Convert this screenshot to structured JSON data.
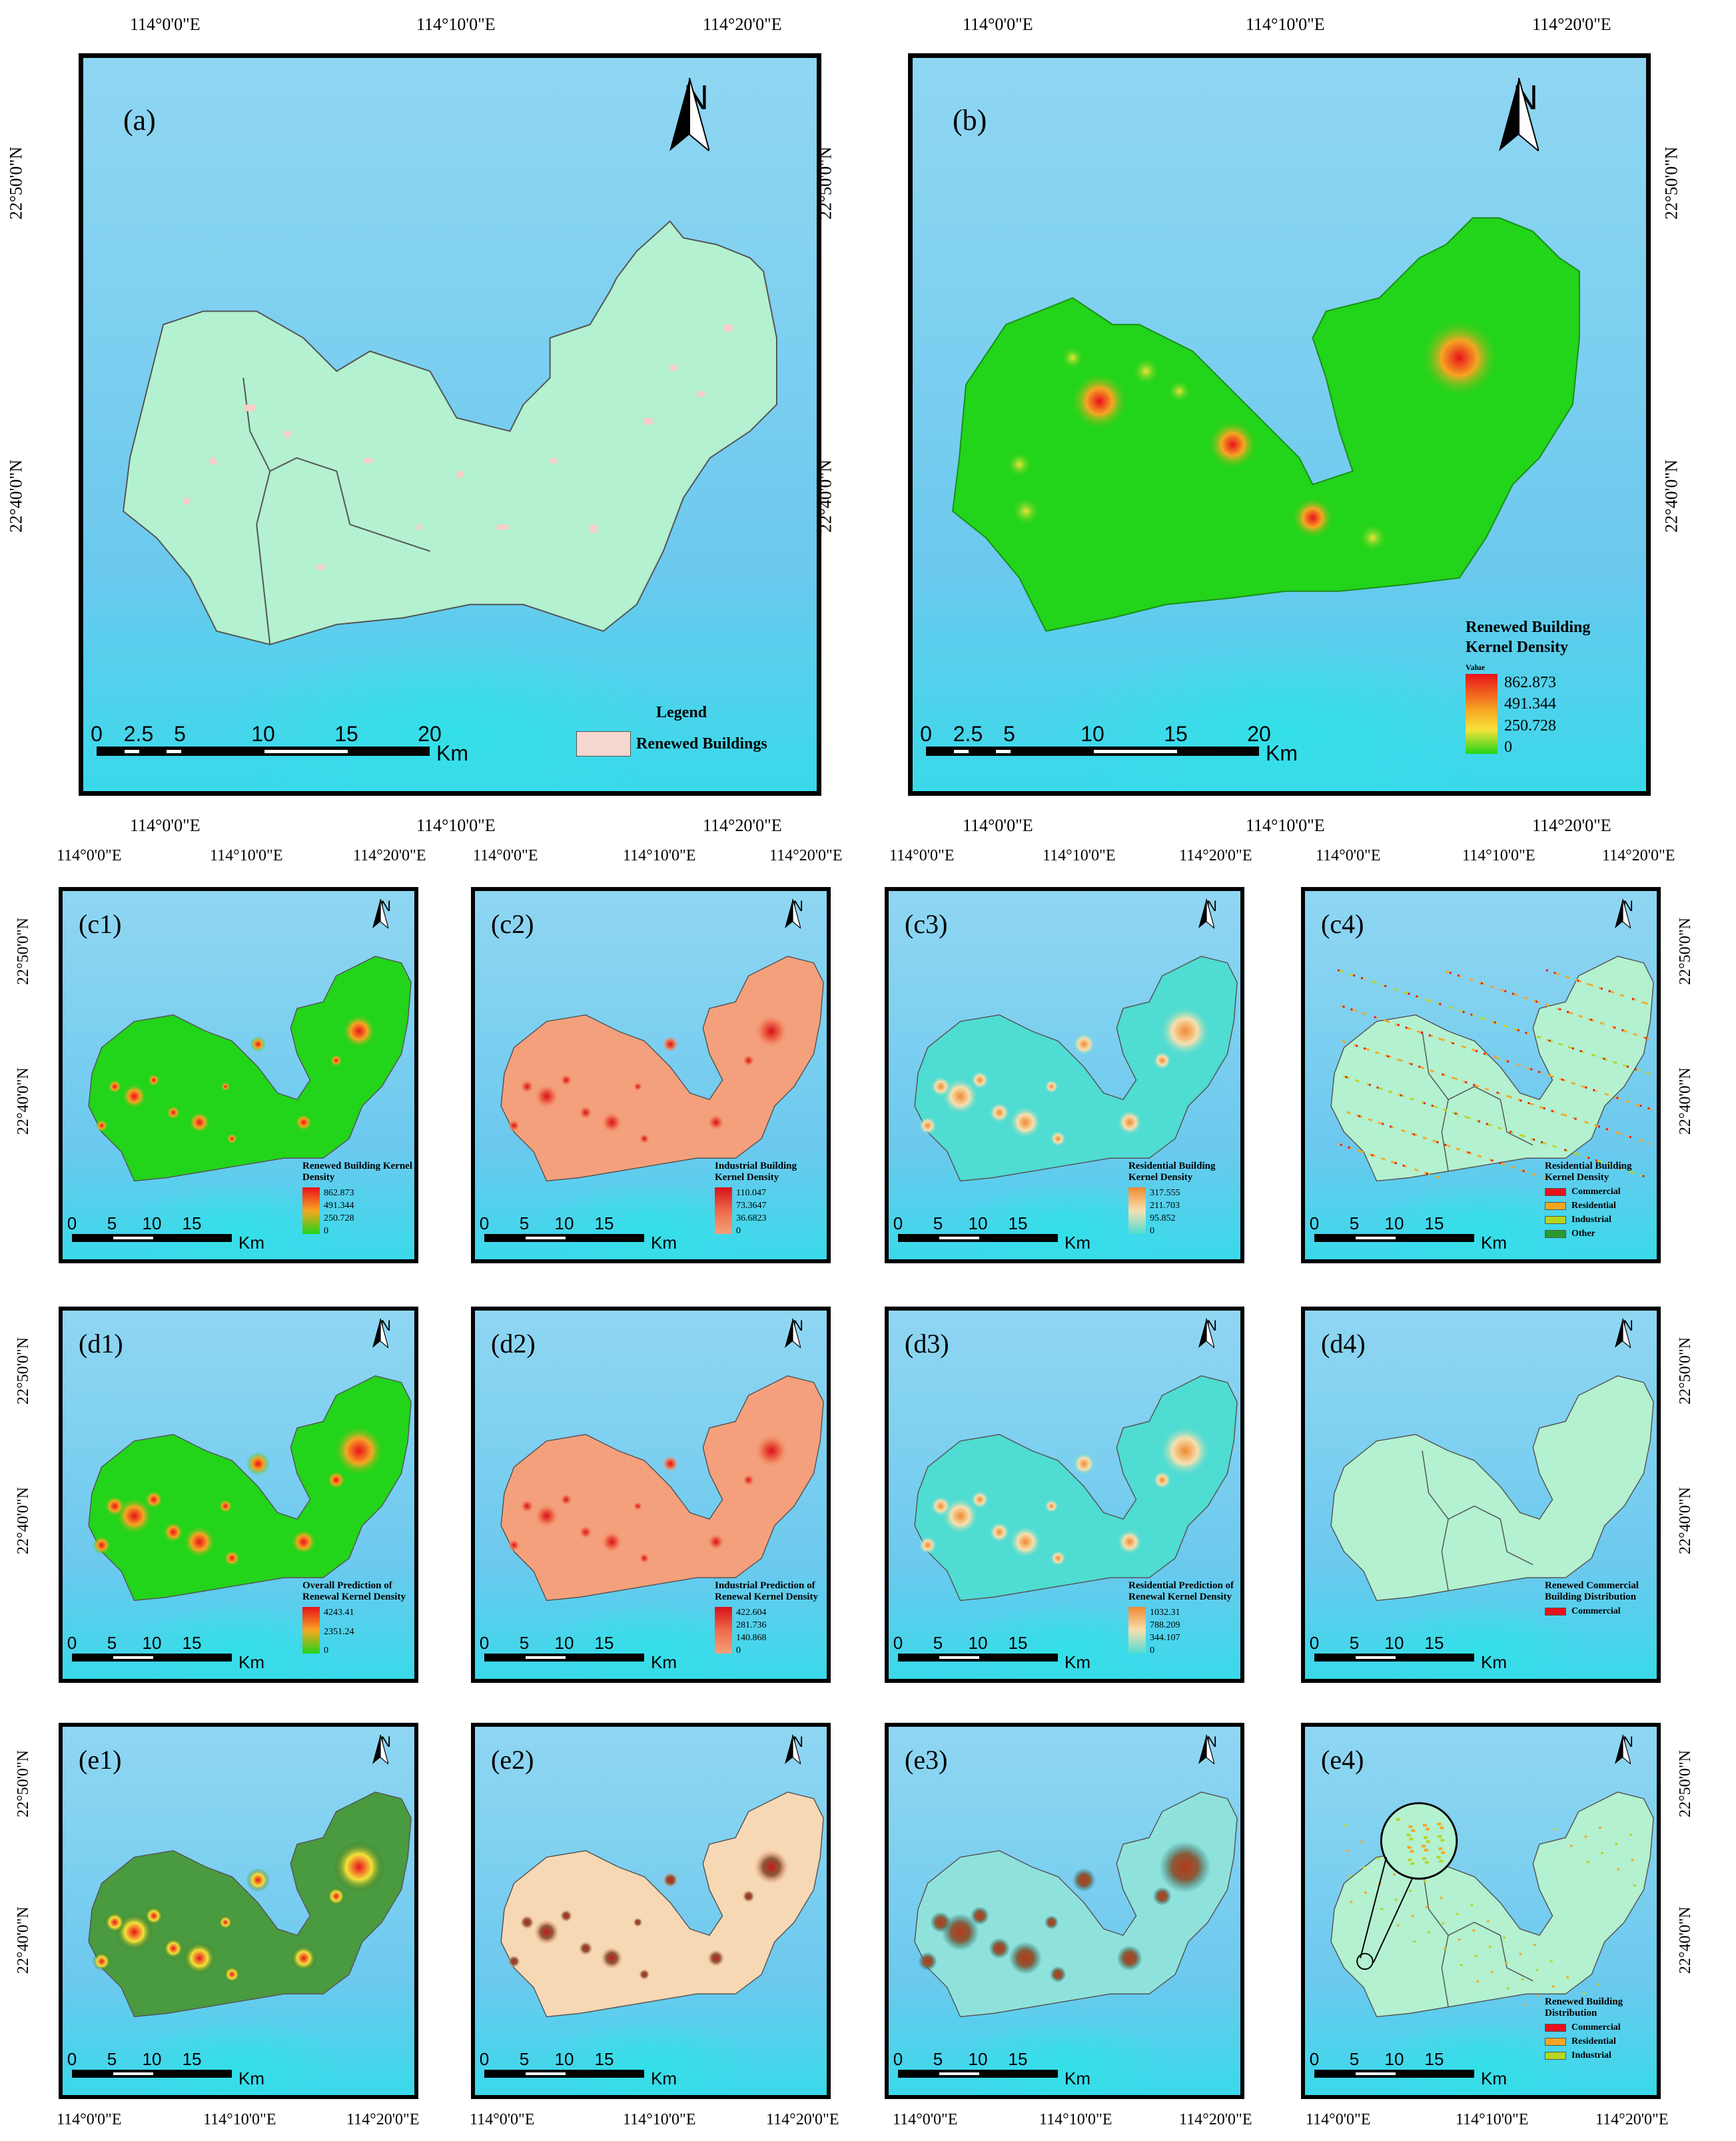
{
  "coords": {
    "lon": [
      "114°0'0\"E",
      "114°10'0\"E",
      "114°20'0\"E"
    ],
    "lat": [
      "22°50'0\"N",
      "22°40'0\"N"
    ]
  },
  "north_label": "N",
  "scale_large": {
    "ticks": [
      "0",
      "2.5",
      "5",
      "10",
      "15",
      "20"
    ],
    "unit": "Km"
  },
  "scale_small": {
    "ticks": [
      "0",
      "5",
      "10",
      "15"
    ],
    "unit": "Km"
  },
  "panels": {
    "a": {
      "label": "(a)",
      "legend_title": "Legend",
      "legend_item": "Renewed Buildings",
      "swatch": "#f5d7cf"
    },
    "b": {
      "label": "(b)",
      "legend_title": "Renewed Building Kernel Density",
      "value_label": "Value",
      "values": [
        "862.873",
        "491.344",
        "250.728",
        "0"
      ]
    },
    "c1": {
      "label": "(c1)",
      "legend_title": "Renewed Building Kernel Density",
      "values": [
        "862.873",
        "491.344",
        "250.728",
        "0"
      ]
    },
    "c2": {
      "label": "(c2)",
      "legend_title": "Industrial Building Kernel Density",
      "values": [
        "110.047",
        "73.3647",
        "36.6823",
        "0"
      ]
    },
    "c3": {
      "label": "(c3)",
      "legend_title": "Residential Building Kernel Density",
      "values": [
        "317.555",
        "211.703",
        "95.852",
        "0"
      ]
    },
    "c4": {
      "label": "(c4)",
      "legend_title": "Residential Building Kernel Density",
      "items": [
        "Commercial",
        "Residential",
        "Industrial",
        "Other"
      ]
    },
    "d1": {
      "label": "(d1)",
      "legend_title": "Overall Prediction of Renewal Kernel Density",
      "values": [
        "4243.41",
        "2351.24",
        "0"
      ]
    },
    "d2": {
      "label": "(d2)",
      "legend_title": "Industrial Prediction of Renewal Kernel Density",
      "values": [
        "422.604",
        "281.736",
        "140.868",
        "0"
      ]
    },
    "d3": {
      "label": "(d3)",
      "legend_title": "Residential Prediction of Renewal Kernel Density",
      "values": [
        "1032.31",
        "788.209",
        "344.107",
        "0"
      ]
    },
    "d4": {
      "label": "(d4)",
      "legend_title": "Renewed Commercial Building Distribution",
      "items": [
        "Commercial"
      ]
    },
    "e1": {
      "label": "(e1)"
    },
    "e2": {
      "label": "(e2)"
    },
    "e3": {
      "label": "(e3)"
    },
    "e4": {
      "label": "(e4)",
      "legend_title": "Renewed Building Distribution",
      "items": [
        "Commercial",
        "Residential",
        "Industrial"
      ]
    }
  },
  "colors": {
    "region_fill": "#b3f1d0",
    "green_density": "#22d41a",
    "industrial_fill": "#f4a07c",
    "residential_fill": "#4fdcd2",
    "commercial": "#e8111b",
    "residential": "#f6a623",
    "industrial": "#b8d51d",
    "other": "#2a9a2a"
  }
}
